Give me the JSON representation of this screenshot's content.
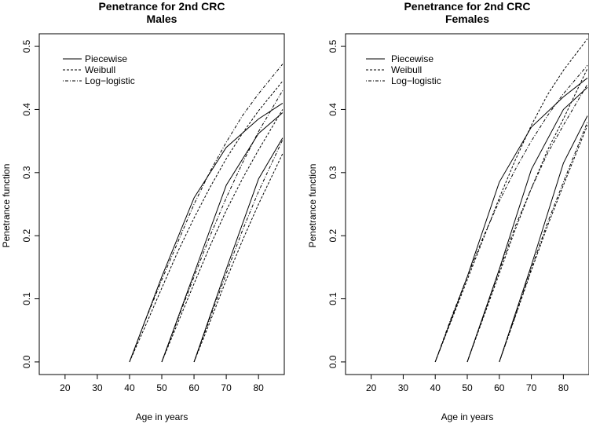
{
  "chart_data": [
    {
      "type": "line",
      "title": "Penetrance for 2nd CRC",
      "subtitle": "Males",
      "xlabel": "Age in years",
      "ylabel": "Penetrance function",
      "xlim": [
        12,
        88
      ],
      "ylim": [
        -0.02,
        0.52
      ],
      "xticks": [
        20,
        30,
        40,
        50,
        60,
        70,
        80
      ],
      "yticks": [
        0.0,
        0.1,
        0.2,
        0.3,
        0.4,
        0.5
      ],
      "ytick_labels": [
        "0.0",
        "0.1",
        "0.2",
        "0.3",
        "0.4",
        "0.5"
      ],
      "legend": {
        "position": "top-left",
        "entries": [
          "Piecewise",
          "Weibull",
          "Log−logistic"
        ]
      },
      "series": [
        {
          "name": "Piecewise",
          "style": "solid",
          "curves": [
            {
              "x": [
                40,
                50,
                60,
                70,
                80,
                87.5
              ],
              "y": [
                0.0,
                0.135,
                0.26,
                0.34,
                0.385,
                0.41
              ]
            },
            {
              "x": [
                50,
                60,
                70,
                80,
                87.5
              ],
              "y": [
                0.0,
                0.14,
                0.28,
                0.362,
                0.395
              ]
            },
            {
              "x": [
                60,
                70,
                80,
                87.5
              ],
              "y": [
                0.0,
                0.147,
                0.29,
                0.355
              ]
            }
          ]
        },
        {
          "name": "Weibull",
          "style": "dashed",
          "curves": [
            {
              "x": [
                40,
                45,
                50,
                55,
                60,
                65,
                70,
                75,
                80,
                87.5
              ],
              "y": [
                0.0,
                0.058,
                0.117,
                0.175,
                0.228,
                0.277,
                0.322,
                0.362,
                0.398,
                0.445
              ]
            },
            {
              "x": [
                50,
                55,
                60,
                65,
                70,
                75,
                80,
                87.5
              ],
              "y": [
                0.0,
                0.062,
                0.124,
                0.184,
                0.24,
                0.29,
                0.336,
                0.4
              ]
            },
            {
              "x": [
                60,
                65,
                70,
                75,
                80,
                87.5
              ],
              "y": [
                0.0,
                0.064,
                0.13,
                0.192,
                0.25,
                0.33
              ]
            }
          ]
        },
        {
          "name": "Log−logistic",
          "style": "dotdash",
          "curves": [
            {
              "x": [
                40,
                45,
                50,
                55,
                60,
                65,
                70,
                75,
                80,
                87.5
              ],
              "y": [
                0.0,
                0.067,
                0.13,
                0.19,
                0.25,
                0.302,
                0.348,
                0.39,
                0.425,
                0.472
              ]
            },
            {
              "x": [
                50,
                55,
                60,
                65,
                70,
                75,
                80,
                87.5
              ],
              "y": [
                0.0,
                0.068,
                0.135,
                0.2,
                0.26,
                0.315,
                0.365,
                0.43
              ]
            },
            {
              "x": [
                60,
                65,
                70,
                75,
                80,
                87.5
              ],
              "y": [
                0.0,
                0.07,
                0.14,
                0.208,
                0.27,
                0.352
              ]
            }
          ]
        }
      ]
    },
    {
      "type": "line",
      "title": "Penetrance for 2nd CRC",
      "subtitle": "Females",
      "xlabel": "Age in years",
      "ylabel": "Penetrance function",
      "xlim": [
        12,
        88
      ],
      "ylim": [
        -0.02,
        0.52
      ],
      "xticks": [
        20,
        30,
        40,
        50,
        60,
        70,
        80
      ],
      "yticks": [
        0.0,
        0.1,
        0.2,
        0.3,
        0.4,
        0.5
      ],
      "ytick_labels": [
        "0.0",
        "0.1",
        "0.2",
        "0.3",
        "0.4",
        "0.5"
      ],
      "legend": {
        "position": "top-left",
        "entries": [
          "Piecewise",
          "Weibull",
          "Log−logistic"
        ]
      },
      "series": [
        {
          "name": "Piecewise",
          "style": "solid",
          "curves": [
            {
              "x": [
                40,
                50,
                60,
                70,
                80,
                87.5
              ],
              "y": [
                0.0,
                0.135,
                0.285,
                0.372,
                0.42,
                0.45
              ]
            },
            {
              "x": [
                50,
                60,
                70,
                80,
                87.5
              ],
              "y": [
                0.0,
                0.147,
                0.305,
                0.4,
                0.435
              ]
            },
            {
              "x": [
                60,
                70,
                80,
                87.5
              ],
              "y": [
                0.0,
                0.153,
                0.315,
                0.39
              ]
            }
          ]
        },
        {
          "name": "Weibull",
          "style": "dashed",
          "curves": [
            {
              "x": [
                40,
                45,
                50,
                55,
                60,
                65,
                70,
                75,
                80,
                87.5
              ],
              "y": [
                0.0,
                0.065,
                0.13,
                0.195,
                0.26,
                0.32,
                0.375,
                0.423,
                0.462,
                0.512
              ]
            },
            {
              "x": [
                50,
                55,
                60,
                65,
                70,
                75,
                80,
                87.5
              ],
              "y": [
                0.0,
                0.07,
                0.14,
                0.21,
                0.275,
                0.335,
                0.385,
                0.465
              ]
            },
            {
              "x": [
                60,
                65,
                70,
                75,
                80,
                87.5
              ],
              "y": [
                0.0,
                0.072,
                0.145,
                0.215,
                0.28,
                0.375
              ]
            }
          ]
        },
        {
          "name": "Log−logistic",
          "style": "dotdash",
          "curves": [
            {
              "x": [
                40,
                45,
                50,
                55,
                60,
                65,
                70,
                75,
                80,
                87.5
              ],
              "y": [
                0.0,
                0.07,
                0.135,
                0.198,
                0.255,
                0.305,
                0.35,
                0.39,
                0.425,
                0.47
              ]
            },
            {
              "x": [
                50,
                55,
                60,
                65,
                70,
                75,
                80,
                87.5
              ],
              "y": [
                0.0,
                0.072,
                0.145,
                0.215,
                0.275,
                0.33,
                0.375,
                0.44
              ]
            },
            {
              "x": [
                60,
                65,
                70,
                75,
                80,
                87.5
              ],
              "y": [
                0.0,
                0.073,
                0.148,
                0.22,
                0.285,
                0.38
              ]
            }
          ]
        }
      ]
    }
  ]
}
